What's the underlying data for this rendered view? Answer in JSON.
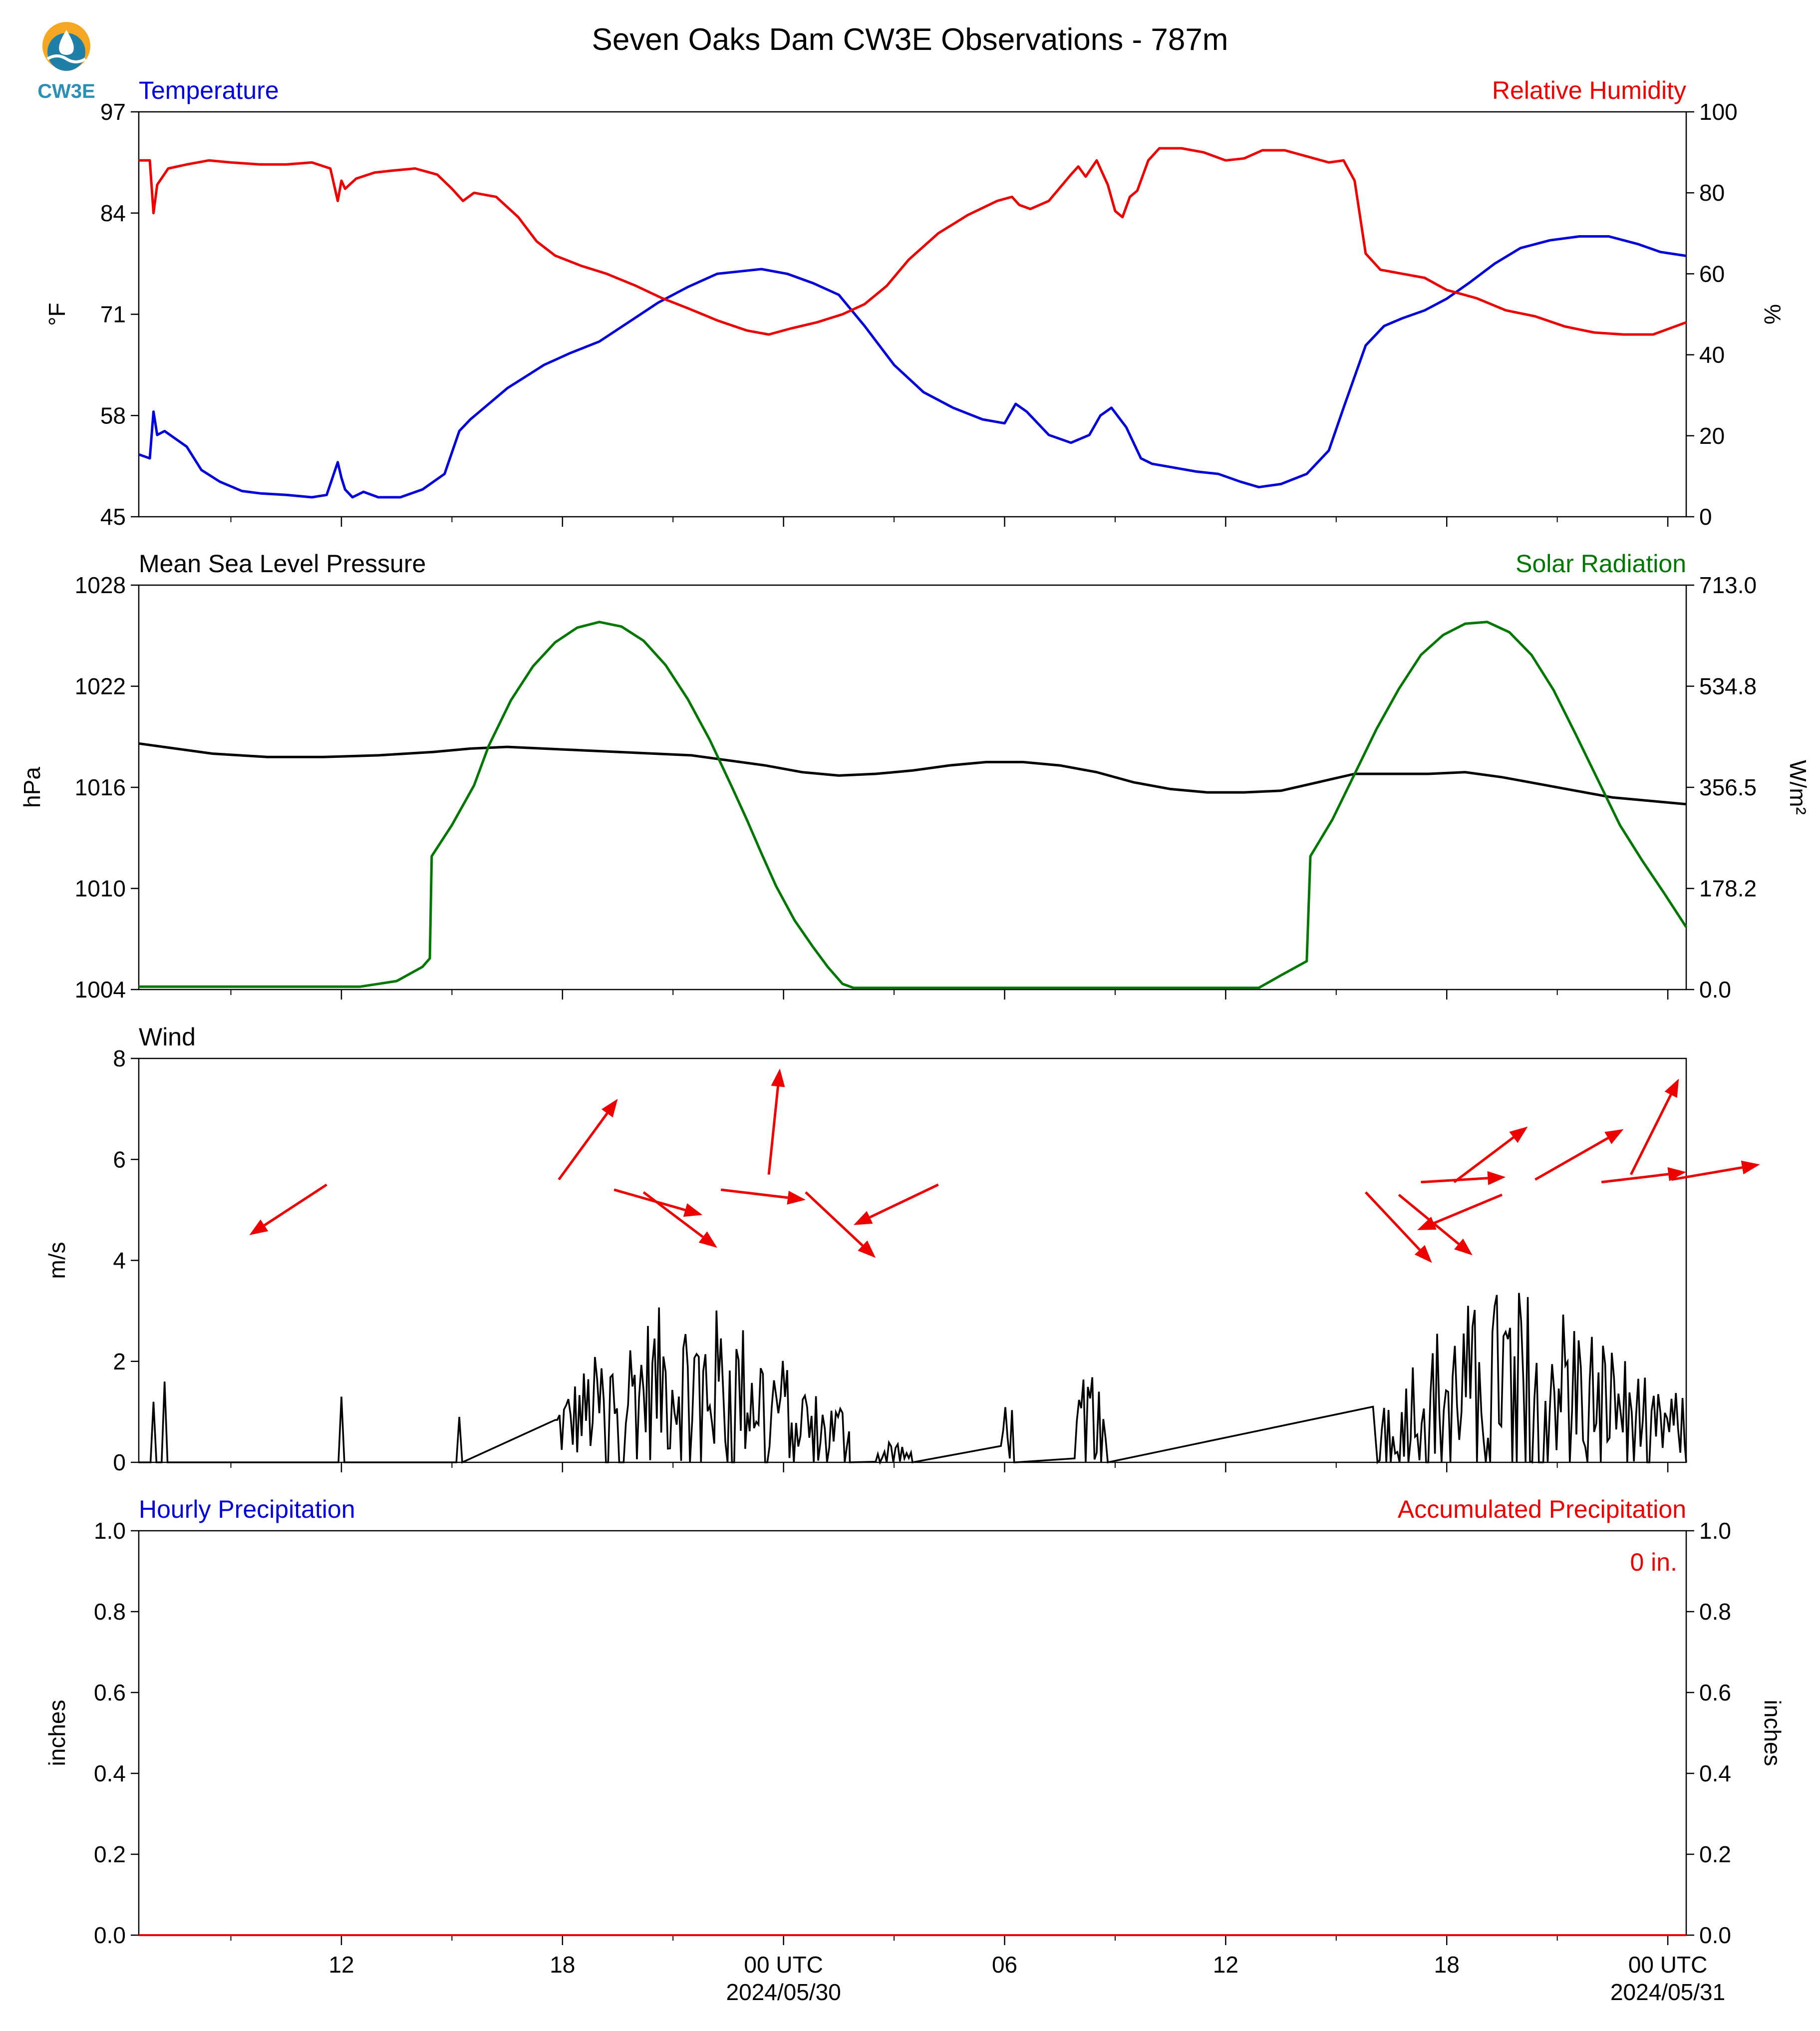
{
  "title": "Seven Oaks Dam CW3E Observations - 787m",
  "logo_text": "CW3E",
  "colors": {
    "temperature": "#0000dd",
    "humidity": "#ee0000",
    "pressure": "#000000",
    "solar": "#007700",
    "wind": "#000000",
    "arrows": "#ee0000",
    "precip_hourly": "#0000dd",
    "precip_accum": "#ee0000"
  },
  "x_axis": {
    "unit": "hours",
    "range": [
      6.5,
      48.5
    ],
    "major_ticks": [
      {
        "t": 12,
        "label": "12"
      },
      {
        "t": 18,
        "label": "18"
      },
      {
        "t": 24,
        "label": "00 UTC",
        "date": "2024/05/30"
      },
      {
        "t": 30,
        "label": "06"
      },
      {
        "t": 36,
        "label": "12"
      },
      {
        "t": 42,
        "label": "18"
      },
      {
        "t": 48,
        "label": "00 UTC",
        "date": "2024/05/31"
      }
    ],
    "minor_ticks": [
      9,
      15,
      21,
      27,
      33,
      39,
      45
    ]
  },
  "chart_data": [
    {
      "id": "temperature-humidity",
      "type": "line",
      "title_left": "Temperature",
      "title_right": "Relative Humidity",
      "ylabel_left": "°F",
      "ylabel_right": "%",
      "ylim_left": [
        45,
        97
      ],
      "yticks_left": [
        "45",
        "58",
        "71",
        "84",
        "97"
      ],
      "ylim_right": [
        0,
        100
      ],
      "yticks_right": [
        "0",
        "20",
        "40",
        "60",
        "80",
        "100"
      ],
      "series": [
        {
          "key": "temp",
          "axis": "left",
          "x": [
            6.5,
            6.8,
            6.9,
            7.0,
            7.2,
            7.8,
            8.2,
            8.7,
            9.3,
            9.8,
            10.5,
            11.2,
            11.6,
            11.9,
            12.0,
            12.1,
            12.3,
            12.6,
            13.0,
            13.6,
            14.2,
            14.8,
            15.2,
            15.5,
            16.0,
            16.5,
            17.0,
            17.5,
            18.2,
            19.0,
            19.8,
            20.6,
            21.4,
            22.2,
            22.8,
            23.4,
            24.1,
            24.8,
            25.5,
            26.2,
            27.0,
            27.8,
            28.6,
            29.4,
            30.0,
            30.3,
            30.6,
            31.2,
            31.8,
            32.3,
            32.6,
            32.9,
            33.3,
            33.7,
            34.0,
            34.6,
            35.2,
            35.8,
            36.4,
            36.9,
            37.5,
            38.2,
            38.8,
            39.2,
            39.5,
            39.8,
            40.3,
            40.8,
            41.4,
            42.0,
            42.6,
            43.3,
            44.0,
            44.8,
            45.6,
            46.4,
            47.2,
            47.8,
            48.5
          ],
          "y": [
            53,
            52.5,
            58.5,
            55.5,
            56,
            54,
            51,
            49.5,
            48.3,
            48,
            47.8,
            47.5,
            47.8,
            52,
            50,
            48.5,
            47.5,
            48.2,
            47.5,
            47.5,
            48.5,
            50.5,
            56,
            57.5,
            59.5,
            61.5,
            63,
            64.5,
            66,
            67.5,
            70,
            72.5,
            74.5,
            76.2,
            76.5,
            76.8,
            76.2,
            75,
            73.5,
            69.5,
            64.5,
            61,
            59,
            57.5,
            57,
            59.5,
            58.5,
            55.5,
            54.5,
            55.5,
            58,
            59,
            56.5,
            52.5,
            51.8,
            51.3,
            50.8,
            50.5,
            49.5,
            48.8,
            49.2,
            50.5,
            53.5,
            59,
            63,
            67,
            69.5,
            70.5,
            71.5,
            73,
            75,
            77.5,
            79.5,
            80.5,
            81,
            81,
            80,
            79,
            78.5
          ]
        },
        {
          "key": "rh",
          "axis": "right",
          "x": [
            6.5,
            6.8,
            6.9,
            7.0,
            7.3,
            7.8,
            8.4,
            9.0,
            9.8,
            10.5,
            11.2,
            11.7,
            11.9,
            12.0,
            12.1,
            12.4,
            12.9,
            13.4,
            14.0,
            14.6,
            15.0,
            15.3,
            15.6,
            16.2,
            16.8,
            17.3,
            17.8,
            18.5,
            19.2,
            20.0,
            20.7,
            21.4,
            22.2,
            23.0,
            23.6,
            24.2,
            24.9,
            25.6,
            26.2,
            26.8,
            27.4,
            28.2,
            29.0,
            29.8,
            30.2,
            30.4,
            30.7,
            31.2,
            31.8,
            32.0,
            32.2,
            32.5,
            32.8,
            33.0,
            33.2,
            33.4,
            33.6,
            33.9,
            34.2,
            34.8,
            35.4,
            36.0,
            36.5,
            37.0,
            37.6,
            38.2,
            38.8,
            39.2,
            39.5,
            39.8,
            40.2,
            40.8,
            41.4,
            42.0,
            42.8,
            43.6,
            44.4,
            45.2,
            46.0,
            46.8,
            47.6,
            48.5
          ],
          "y": [
            88,
            88,
            75,
            82,
            86,
            87,
            88,
            87.5,
            87,
            87,
            87.5,
            86,
            78,
            83,
            81,
            83.5,
            85,
            85.5,
            86,
            84.5,
            81,
            78,
            80,
            79,
            74,
            68,
            64.5,
            62,
            60,
            57,
            54,
            51.5,
            48.5,
            46,
            45,
            46.5,
            48,
            50,
            52.5,
            57,
            63.5,
            70,
            74.5,
            78,
            79,
            77,
            76,
            78,
            84.5,
            86.5,
            84,
            88,
            82,
            75.5,
            74,
            79,
            80.5,
            88,
            91,
            91,
            90,
            88,
            88.5,
            90.5,
            90.5,
            89,
            87.5,
            88,
            83,
            65,
            61,
            60,
            59,
            56,
            54,
            51,
            49.5,
            47,
            45.5,
            45,
            45,
            48
          ]
        }
      ]
    },
    {
      "id": "pressure-solar",
      "type": "line",
      "title_left": "Mean Sea Level Pressure",
      "title_right": "Solar Radiation",
      "ylabel_left": "hPa",
      "ylabel_right": "W/m²",
      "ylim_left": [
        1004,
        1028
      ],
      "yticks_left": [
        "1004",
        "1010",
        "1016",
        "1022",
        "1028"
      ],
      "ylim_right": [
        0,
        713
      ],
      "yticks_right": [
        "0.0",
        "178.2",
        "356.5",
        "534.8",
        "713.0"
      ],
      "series": [
        {
          "key": "mslp",
          "axis": "left",
          "x": [
            6.5,
            7.5,
            8.5,
            10.0,
            11.5,
            13.0,
            14.5,
            15.5,
            16.5,
            17.5,
            18.5,
            19.5,
            20.5,
            21.5,
            22.5,
            23.5,
            24.5,
            25.5,
            26.5,
            27.5,
            28.5,
            29.5,
            30.5,
            31.5,
            32.5,
            33.5,
            34.5,
            35.5,
            36.5,
            37.5,
            38.5,
            39.5,
            40.5,
            41.5,
            42.5,
            43.5,
            44.5,
            45.5,
            46.5,
            47.5,
            48.5
          ],
          "y": [
            1018.6,
            1018.3,
            1018.0,
            1017.8,
            1017.8,
            1017.9,
            1018.1,
            1018.3,
            1018.4,
            1018.3,
            1018.2,
            1018.1,
            1018.0,
            1017.9,
            1017.6,
            1017.3,
            1016.9,
            1016.7,
            1016.8,
            1017.0,
            1017.3,
            1017.5,
            1017.5,
            1017.3,
            1016.9,
            1016.3,
            1015.9,
            1015.7,
            1015.7,
            1015.8,
            1016.3,
            1016.8,
            1016.8,
            1016.8,
            1016.9,
            1016.6,
            1016.2,
            1015.8,
            1015.4,
            1015.2,
            1015.0
          ]
        },
        {
          "key": "solar",
          "axis": "right",
          "x": [
            6.5,
            12.5,
            13.5,
            14.2,
            14.4,
            14.45,
            15.0,
            15.6,
            16.0,
            16.6,
            17.2,
            17.8,
            18.4,
            19.0,
            19.6,
            20.2,
            20.8,
            21.4,
            22.0,
            22.6,
            23.0,
            23.4,
            23.8,
            24.3,
            24.8,
            25.2,
            25.6,
            25.9,
            26.2,
            29.0,
            32.0,
            35.0,
            36.9,
            37.5,
            38.2,
            38.3,
            38.9,
            39.5,
            40.1,
            40.7,
            41.3,
            41.9,
            42.5,
            43.1,
            43.7,
            44.3,
            44.9,
            45.5,
            46.1,
            46.7,
            47.3,
            47.9,
            48.5
          ],
          "y": [
            5,
            5,
            15,
            40,
            55,
            235,
            290,
            360,
            430,
            510,
            570,
            612,
            638,
            648,
            640,
            615,
            572,
            512,
            440,
            357,
            300,
            240,
            182,
            122,
            75,
            40,
            10,
            3,
            3,
            3,
            3,
            3,
            3,
            25,
            50,
            235,
            300,
            380,
            460,
            530,
            590,
            625,
            645,
            648,
            630,
            590,
            528,
            450,
            370,
            290,
            228,
            170,
            110
          ]
        }
      ]
    },
    {
      "id": "wind",
      "type": "bar",
      "title_left": "Wind",
      "ylabel_left": "m/s",
      "ylim_left": [
        0,
        8
      ],
      "yticks_left": [
        "0",
        "2",
        "4",
        "6",
        "8"
      ],
      "series": [
        {
          "key": "wind_bursts",
          "bursts": [
            {
              "center": 6.9,
              "peak": 1.2
            },
            {
              "center": 7.2,
              "peak": 1.6
            },
            {
              "center": 12.0,
              "peak": 1.3
            },
            {
              "center": 15.2,
              "peak": 0.9
            }
          ],
          "active_windows": [
            {
              "start": 17.8,
              "end": 25.8,
              "max": 3.2
            },
            {
              "start": 26.5,
              "end": 27.5,
              "max": 0.5
            },
            {
              "start": 29.9,
              "end": 30.3,
              "max": 1.7
            },
            {
              "start": 31.9,
              "end": 32.8,
              "max": 1.9
            },
            {
              "start": 40.0,
              "end": 48.5,
              "max": 3.5
            }
          ]
        },
        {
          "key": "wind_direction_arrows",
          "arrows": [
            {
              "x": 11.6,
              "y": 5.5,
              "dx": -2.1,
              "dy": -1.0
            },
            {
              "x": 17.9,
              "y": 5.6,
              "dx": 1.6,
              "dy": 1.6
            },
            {
              "x": 19.4,
              "y": 5.4,
              "dx": 2.4,
              "dy": -0.5
            },
            {
              "x": 20.2,
              "y": 5.35,
              "dx": 2.0,
              "dy": -1.1
            },
            {
              "x": 22.3,
              "y": 5.4,
              "dx": 2.3,
              "dy": -0.2
            },
            {
              "x": 23.6,
              "y": 5.7,
              "dx": 0.3,
              "dy": 2.1
            },
            {
              "x": 24.6,
              "y": 5.35,
              "dx": 1.9,
              "dy": -1.3
            },
            {
              "x": 28.2,
              "y": 5.5,
              "dx": -2.3,
              "dy": -0.8
            },
            {
              "x": 39.8,
              "y": 5.35,
              "dx": 1.8,
              "dy": -1.4
            },
            {
              "x": 40.7,
              "y": 5.3,
              "dx": 2.0,
              "dy": -1.2
            },
            {
              "x": 41.3,
              "y": 5.55,
              "dx": 2.3,
              "dy": 0.1
            },
            {
              "x": 42.2,
              "y": 5.55,
              "dx": 2.0,
              "dy": 1.1
            },
            {
              "x": 43.5,
              "y": 5.3,
              "dx": -2.3,
              "dy": -0.7
            },
            {
              "x": 44.4,
              "y": 5.6,
              "dx": 2.4,
              "dy": 1.0
            },
            {
              "x": 46.2,
              "y": 5.55,
              "dx": 2.3,
              "dy": 0.2
            },
            {
              "x": 47.0,
              "y": 5.7,
              "dx": 1.3,
              "dy": 1.9
            },
            {
              "x": 48.1,
              "y": 5.6,
              "dx": 2.4,
              "dy": 0.3
            }
          ]
        }
      ]
    },
    {
      "id": "precipitation",
      "type": "line",
      "title_left": "Hourly Precipitation",
      "title_right": "Accumulated Precipitation",
      "ylabel_left": "inches",
      "ylabel_right": "inches",
      "ylim_left": [
        0,
        1.0
      ],
      "yticks_left": [
        "0.0",
        "0.2",
        "0.4",
        "0.6",
        "0.8",
        "1.0"
      ],
      "ylim_right": [
        0,
        1.0
      ],
      "yticks_right": [
        "0.0",
        "0.2",
        "0.4",
        "0.6",
        "0.8",
        "1.0"
      ],
      "annotation": "0 in.",
      "series": [
        {
          "key": "hourly",
          "axis": "left",
          "x": [
            6.5,
            48.5
          ],
          "y": [
            0,
            0
          ]
        },
        {
          "key": "accum",
          "axis": "right",
          "x": [
            6.5,
            48.5
          ],
          "y": [
            0,
            0
          ]
        }
      ]
    }
  ]
}
